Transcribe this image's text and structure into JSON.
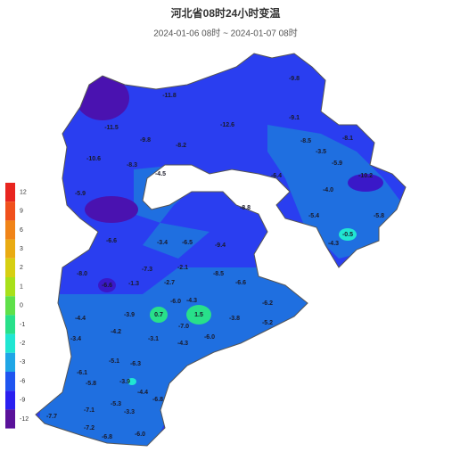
{
  "header": {
    "title": "河北省08时24小时变温",
    "subtitle": "2024-01-06 08时 ~ 2024-01-07 08时"
  },
  "legend": {
    "items": [
      {
        "label": "12",
        "color": "#e8251f"
      },
      {
        "label": "9",
        "color": "#f0501c"
      },
      {
        "label": "6",
        "color": "#f08418"
      },
      {
        "label": "3",
        "color": "#e9ab12"
      },
      {
        "label": "2",
        "color": "#d6cf12"
      },
      {
        "label": "1",
        "color": "#a8e01a"
      },
      {
        "label": "0",
        "color": "#5fe04a"
      },
      {
        "label": "-1",
        "color": "#28e08a"
      },
      {
        "label": "-2",
        "color": "#20e6d2"
      },
      {
        "label": "-3",
        "color": "#1fa6e6"
      },
      {
        "label": "-6",
        "color": "#1f55f0"
      },
      {
        "label": "-9",
        "color": "#2a1ff0"
      },
      {
        "label": "-12",
        "color": "#5a129a"
      }
    ]
  },
  "map": {
    "labels": [
      {
        "text": "-9.8"
      },
      {
        "text": "-11.8"
      },
      {
        "text": "-12.6"
      },
      {
        "text": "-11.5"
      },
      {
        "text": "-9.8"
      },
      {
        "text": "-8.2"
      },
      {
        "text": "-9.1"
      },
      {
        "text": "-8.5"
      },
      {
        "text": "-8.1"
      },
      {
        "text": "-10.6"
      },
      {
        "text": "-8.3"
      },
      {
        "text": "-4.5"
      },
      {
        "text": "-3.5"
      },
      {
        "text": "-5.9"
      },
      {
        "text": "-6.4"
      },
      {
        "text": "-4.0"
      },
      {
        "text": "-10.2"
      },
      {
        "text": "-5.9"
      },
      {
        "text": "-8.8"
      },
      {
        "text": "-5.4"
      },
      {
        "text": "-5.8"
      },
      {
        "text": "-0.5"
      },
      {
        "text": "-4.3"
      },
      {
        "text": "-6.6"
      },
      {
        "text": "-3.4"
      },
      {
        "text": "-6.5"
      },
      {
        "text": "-9.4"
      },
      {
        "text": "-8.0"
      },
      {
        "text": "-7.3"
      },
      {
        "text": "-2.1"
      },
      {
        "text": "-8.5"
      },
      {
        "text": "-6.6"
      },
      {
        "text": "-6.6"
      },
      {
        "text": "-1.3"
      },
      {
        "text": "-2.7"
      },
      {
        "text": "0.7"
      },
      {
        "text": "1.5"
      },
      {
        "text": "-4.3"
      },
      {
        "text": "-6.0"
      },
      {
        "text": "-6.2"
      },
      {
        "text": "-4.4"
      },
      {
        "text": "-3.9"
      },
      {
        "text": "-3.8"
      },
      {
        "text": "-5.2"
      },
      {
        "text": "-7.0"
      },
      {
        "text": "-3.4"
      },
      {
        "text": "-4.2"
      },
      {
        "text": "-3.1"
      },
      {
        "text": "-4.3"
      },
      {
        "text": "-6.0"
      },
      {
        "text": "-5.1"
      },
      {
        "text": "-6.1"
      },
      {
        "text": "-6.3"
      },
      {
        "text": "-5.8"
      },
      {
        "text": "-3.9"
      },
      {
        "text": "-4.4"
      },
      {
        "text": "-6.8"
      },
      {
        "text": "-5.3"
      },
      {
        "text": "-7.1"
      },
      {
        "text": "-3.3"
      },
      {
        "text": "-7.7"
      },
      {
        "text": "-7.2"
      },
      {
        "text": "-6.8"
      },
      {
        "text": "-6.0"
      }
    ]
  }
}
